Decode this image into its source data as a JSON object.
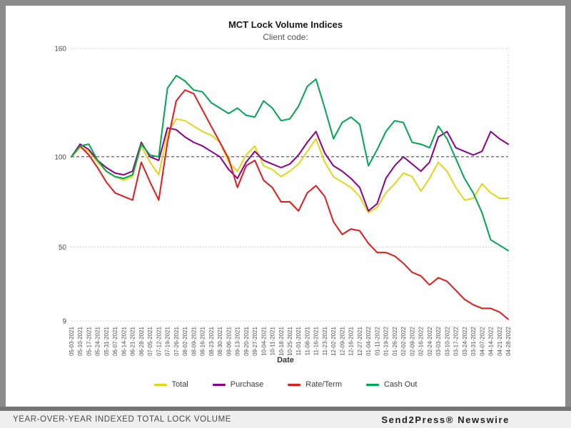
{
  "frame": {
    "border_color": "#8a8a8a",
    "panel_color": "#ffffff",
    "footer_bg": "#efefef"
  },
  "chart_data": {
    "type": "line",
    "title": "MCT Lock Volume Indices",
    "subtitle": "Client code:",
    "xlabel": "Date",
    "ylabel": "",
    "ylim": [
      9,
      160
    ],
    "yticks": [
      160,
      100,
      50,
      9
    ],
    "reference_line": 100,
    "grid": "dotted horizontal gridlines at 160, 50, 9; dark dashed reference line at 100; dotted right border",
    "legend_position": "bottom",
    "x": [
      "05-03-2021",
      "05-10-2021",
      "05-17-2021",
      "05-24-2021",
      "05-31-2021",
      "06-07-2021",
      "06-14-2021",
      "06-21-2021",
      "06-28-2021",
      "07-05-2021",
      "07-12-2021",
      "07-19-2021",
      "07-26-2021",
      "08-02-2021",
      "08-09-2021",
      "08-16-2021",
      "08-23-2021",
      "08-30-2021",
      "09-06-2021",
      "09-13-2021",
      "09-20-2021",
      "09-27-2021",
      "10-04-2021",
      "10-11-2021",
      "10-18-2021",
      "10-25-2021",
      "11-01-2021",
      "11-08-2021",
      "11-16-2021",
      "11-23-2021",
      "12-02-2021",
      "12-09-2021",
      "12-16-2021",
      "12-27-2021",
      "01-04-2022",
      "01-11-2022",
      "01-19-2022",
      "01-26-2022",
      "02-02-2022",
      "02-09-2022",
      "02-16-2022",
      "02-24-2022",
      "03-03-2022",
      "03-10-2022",
      "03-17-2022",
      "03-24-2022",
      "03-31-2022",
      "04-07-2022",
      "04-14-2022",
      "04-21-2022",
      "04-28-2022"
    ],
    "series": [
      {
        "name": "Total",
        "color": "#e3d619",
        "values": [
          100,
          105,
          103,
          97,
          92,
          89,
          87,
          89,
          106,
          97,
          90,
          113,
          121,
          120,
          117,
          114,
          112,
          108,
          97,
          92,
          101,
          106,
          95,
          93,
          89,
          92,
          96,
          103,
          110,
          97,
          89,
          86,
          83,
          78,
          69,
          72,
          80,
          85,
          91,
          89,
          81,
          88,
          97,
          92,
          83,
          76,
          77,
          85,
          80,
          77,
          77
        ]
      },
      {
        "name": "Purchase",
        "color": "#8b008b",
        "values": [
          100,
          107,
          104,
          98,
          94,
          91,
          90,
          92,
          108,
          100,
          98,
          116,
          115,
          111,
          108,
          106,
          103,
          100,
          93,
          88,
          97,
          103,
          98,
          96,
          94,
          96,
          101,
          108,
          114,
          102,
          95,
          92,
          88,
          83,
          70,
          74,
          88,
          95,
          100,
          96,
          92,
          97,
          111,
          114,
          105,
          103,
          101,
          103,
          114,
          110,
          107
        ]
      },
      {
        "name": "Rate/Term",
        "color": "#e41a1c",
        "values": [
          100,
          106,
          101,
          94,
          86,
          80,
          78,
          76,
          97,
          86,
          76,
          108,
          131,
          137,
          135,
          126,
          117,
          108,
          99,
          83,
          95,
          98,
          87,
          83,
          75,
          75,
          70,
          80,
          84,
          78,
          64,
          57,
          60,
          59,
          52,
          47,
          47,
          45,
          41,
          36,
          34,
          29,
          33,
          31,
          26,
          21,
          18,
          16,
          16,
          14,
          10
        ]
      },
      {
        "name": "Cash Out",
        "color": "#00a651",
        "values": [
          100,
          106,
          107,
          98,
          92,
          89,
          88,
          90,
          107,
          101,
          100,
          138,
          145,
          142,
          137,
          136,
          130,
          127,
          124,
          127,
          123,
          122,
          131,
          127,
          120,
          121,
          128,
          139,
          143,
          127,
          110,
          119,
          122,
          118,
          95,
          104,
          114,
          120,
          119,
          108,
          107,
          105,
          117,
          110,
          99,
          88,
          80,
          69,
          54,
          51,
          48
        ]
      }
    ]
  },
  "footer": {
    "caption": "YEAR-OVER-YEAR INDEXED TOTAL LOCK VOLUME",
    "brand": "Send2Press® Newswire"
  }
}
